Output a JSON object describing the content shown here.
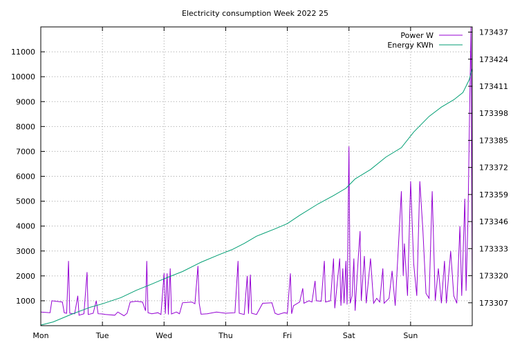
{
  "chart_data": {
    "type": "line",
    "title": "Electricity consumption Week 2022 25",
    "x_tick_labels": [
      "Mon",
      "Tue",
      "Wed",
      "Thu",
      "Fri",
      "Sat",
      "Sun"
    ],
    "x_range_days": [
      0,
      7
    ],
    "y_left": {
      "ticks": [
        1000,
        2000,
        3000,
        4000,
        5000,
        6000,
        7000,
        8000,
        9000,
        10000,
        11000
      ],
      "range": [
        0,
        12000
      ]
    },
    "y_right": {
      "ticks": [
        173307,
        173320,
        173333,
        173346,
        173359,
        173372,
        173385,
        173398,
        173411,
        173424,
        173437
      ],
      "range": [
        173296,
        173439.5
      ]
    },
    "grid": true,
    "legend_position": "top-right",
    "series": [
      {
        "name": "Power W",
        "color": "#9400d3",
        "axis": "left",
        "points": [
          [
            0.0,
            550
          ],
          [
            0.15,
            520
          ],
          [
            0.18,
            1000
          ],
          [
            0.35,
            950
          ],
          [
            0.38,
            520
          ],
          [
            0.42,
            500
          ],
          [
            0.45,
            2600
          ],
          [
            0.47,
            500
          ],
          [
            0.55,
            480
          ],
          [
            0.6,
            1200
          ],
          [
            0.62,
            420
          ],
          [
            0.7,
            480
          ],
          [
            0.75,
            2150
          ],
          [
            0.77,
            450
          ],
          [
            0.85,
            500
          ],
          [
            0.9,
            1000
          ],
          [
            0.93,
            480
          ],
          [
            1.0,
            470
          ],
          [
            1.05,
            450
          ],
          [
            1.2,
            420
          ],
          [
            1.25,
            550
          ],
          [
            1.35,
            400
          ],
          [
            1.4,
            500
          ],
          [
            1.45,
            950
          ],
          [
            1.55,
            980
          ],
          [
            1.65,
            950
          ],
          [
            1.7,
            600
          ],
          [
            1.72,
            2600
          ],
          [
            1.74,
            520
          ],
          [
            1.8,
            480
          ],
          [
            1.9,
            520
          ],
          [
            1.95,
            450
          ],
          [
            2.0,
            2100
          ],
          [
            2.02,
            480
          ],
          [
            2.05,
            2100
          ],
          [
            2.07,
            450
          ],
          [
            2.1,
            2300
          ],
          [
            2.12,
            470
          ],
          [
            2.2,
            550
          ],
          [
            2.25,
            480
          ],
          [
            2.3,
            920
          ],
          [
            2.45,
            950
          ],
          [
            2.5,
            880
          ],
          [
            2.55,
            2400
          ],
          [
            2.57,
            900
          ],
          [
            2.6,
            460
          ],
          [
            2.7,
            480
          ],
          [
            2.85,
            550
          ],
          [
            3.0,
            500
          ],
          [
            3.15,
            520
          ],
          [
            3.2,
            2600
          ],
          [
            3.22,
            500
          ],
          [
            3.3,
            450
          ],
          [
            3.35,
            2000
          ],
          [
            3.37,
            480
          ],
          [
            3.4,
            2050
          ],
          [
            3.42,
            500
          ],
          [
            3.5,
            450
          ],
          [
            3.6,
            900
          ],
          [
            3.75,
            920
          ],
          [
            3.8,
            500
          ],
          [
            3.85,
            450
          ],
          [
            3.95,
            520
          ],
          [
            4.0,
            500
          ],
          [
            4.05,
            2100
          ],
          [
            4.07,
            480
          ],
          [
            4.1,
            800
          ],
          [
            4.2,
            950
          ],
          [
            4.25,
            1500
          ],
          [
            4.27,
            900
          ],
          [
            4.35,
            1000
          ],
          [
            4.4,
            950
          ],
          [
            4.45,
            1800
          ],
          [
            4.47,
            1000
          ],
          [
            4.55,
            980
          ],
          [
            4.6,
            2600
          ],
          [
            4.62,
            950
          ],
          [
            4.7,
            1000
          ],
          [
            4.75,
            2700
          ],
          [
            4.77,
            700
          ],
          [
            4.85,
            2700
          ],
          [
            4.87,
            800
          ],
          [
            4.9,
            2300
          ],
          [
            4.92,
            900
          ],
          [
            4.95,
            2600
          ],
          [
            4.97,
            850
          ],
          [
            5.0,
            7200
          ],
          [
            5.02,
            900
          ],
          [
            5.05,
            1200
          ],
          [
            5.08,
            2700
          ],
          [
            5.1,
            600
          ],
          [
            5.15,
            2700
          ],
          [
            5.18,
            3800
          ],
          [
            5.2,
            1000
          ],
          [
            5.25,
            2800
          ],
          [
            5.28,
            900
          ],
          [
            5.35,
            2700
          ],
          [
            5.4,
            900
          ],
          [
            5.45,
            1100
          ],
          [
            5.5,
            950
          ],
          [
            5.55,
            2300
          ],
          [
            5.57,
            900
          ],
          [
            5.65,
            1100
          ],
          [
            5.7,
            2200
          ],
          [
            5.75,
            800
          ],
          [
            5.85,
            5400
          ],
          [
            5.88,
            2000
          ],
          [
            5.9,
            3300
          ],
          [
            5.95,
            1200
          ],
          [
            6.0,
            5800
          ],
          [
            6.05,
            2500
          ],
          [
            6.1,
            1200
          ],
          [
            6.15,
            5800
          ],
          [
            6.2,
            3800
          ],
          [
            6.25,
            1300
          ],
          [
            6.3,
            1100
          ],
          [
            6.35,
            5400
          ],
          [
            6.4,
            1000
          ],
          [
            6.45,
            2300
          ],
          [
            6.5,
            900
          ],
          [
            6.55,
            2600
          ],
          [
            6.58,
            900
          ],
          [
            6.65,
            3000
          ],
          [
            6.7,
            1200
          ],
          [
            6.75,
            900
          ],
          [
            6.8,
            4000
          ],
          [
            6.83,
            1200
          ],
          [
            6.88,
            5100
          ],
          [
            6.9,
            1400
          ],
          [
            6.93,
            4200
          ],
          [
            6.96,
            9000
          ],
          [
            6.98,
            12000
          ],
          [
            7.0,
            1300
          ]
        ]
      },
      {
        "name": "Energy KWh",
        "color": "#009e73",
        "axis": "right",
        "points": [
          [
            0.0,
            173296.3
          ],
          [
            0.2,
            173297.8
          ],
          [
            0.5,
            173301.5
          ],
          [
            0.8,
            173304.8
          ],
          [
            1.0,
            173306.5
          ],
          [
            1.3,
            173309.5
          ],
          [
            1.55,
            173313.0
          ],
          [
            1.8,
            173316.0
          ],
          [
            2.0,
            173318.5
          ],
          [
            2.3,
            173322.0
          ],
          [
            2.6,
            173326.5
          ],
          [
            2.9,
            173330.2
          ],
          [
            3.1,
            173332.5
          ],
          [
            3.3,
            173335.5
          ],
          [
            3.5,
            173339.0
          ],
          [
            3.8,
            173342.5
          ],
          [
            4.0,
            173345.0
          ],
          [
            4.2,
            173349.0
          ],
          [
            4.5,
            173354.5
          ],
          [
            4.75,
            173358.5
          ],
          [
            4.95,
            173362.0
          ],
          [
            5.1,
            173366.5
          ],
          [
            5.35,
            173371.0
          ],
          [
            5.6,
            173377.0
          ],
          [
            5.85,
            173381.5
          ],
          [
            6.05,
            173389.0
          ],
          [
            6.3,
            173396.5
          ],
          [
            6.5,
            173401.0
          ],
          [
            6.7,
            173404.5
          ],
          [
            6.85,
            173408.0
          ],
          [
            6.95,
            173414.0
          ],
          [
            7.0,
            173419.5
          ]
        ]
      }
    ]
  }
}
